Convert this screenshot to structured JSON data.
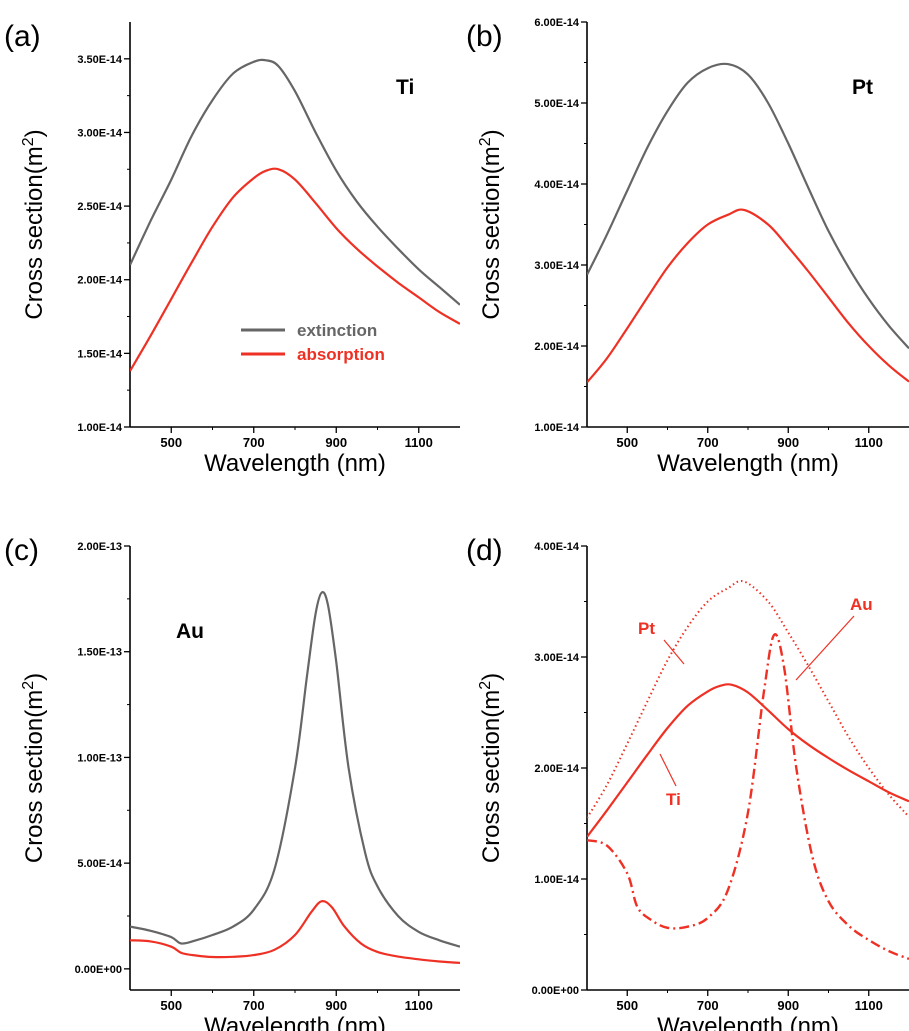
{
  "colors": {
    "extinction": "#666666",
    "absorption": "#ee3124",
    "axis": "#000000"
  },
  "chart_data": [
    {
      "panel": "(a)",
      "type": "line",
      "metal_label": "Ti",
      "xlabel": "Wavelength (nm)",
      "ylabel_main": "Cross section(m",
      "ylabel_sup": "2",
      "ylabel_tail": ")",
      "xlim": [
        400,
        1200
      ],
      "ylim": [
        1e-14,
        3.75e-14
      ],
      "xticks": [
        500,
        700,
        900,
        1100
      ],
      "yticks": [
        1e-14,
        1.5e-14,
        2e-14,
        2.5e-14,
        3e-14,
        3.5e-14
      ],
      "ytick_labels": [
        "1.00E-14",
        "1.50E-14",
        "2.00E-14",
        "2.50E-14",
        "3.00E-14",
        "3.50E-14"
      ],
      "legend": [
        "extinction",
        "absorption"
      ],
      "series": [
        {
          "name": "extinction",
          "style": "solid",
          "color": "#666666",
          "x": [
            400,
            450,
            500,
            550,
            600,
            650,
            700,
            730,
            760,
            800,
            850,
            900,
            950,
            1000,
            1050,
            1100,
            1150,
            1200
          ],
          "y": [
            2.1e-14,
            2.4e-14,
            2.68e-14,
            2.98e-14,
            3.22e-14,
            3.4e-14,
            3.48e-14,
            3.49e-14,
            3.45e-14,
            3.28e-14,
            3e-14,
            2.74e-14,
            2.53e-14,
            2.36e-14,
            2.21e-14,
            2.07e-14,
            1.95e-14,
            1.83e-14
          ]
        },
        {
          "name": "absorption",
          "style": "solid",
          "color": "#ee3124",
          "x": [
            400,
            450,
            500,
            550,
            600,
            650,
            700,
            730,
            760,
            800,
            850,
            900,
            950,
            1000,
            1050,
            1100,
            1150,
            1200
          ],
          "y": [
            1.38e-14,
            1.62e-14,
            1.87e-14,
            2.12e-14,
            2.36e-14,
            2.56e-14,
            2.69e-14,
            2.74e-14,
            2.75e-14,
            2.68e-14,
            2.52e-14,
            2.35e-14,
            2.21e-14,
            2.09e-14,
            1.98e-14,
            1.88e-14,
            1.78e-14,
            1.7e-14
          ]
        }
      ]
    },
    {
      "panel": "(b)",
      "type": "line",
      "metal_label": "Pt",
      "xlabel": "Wavelength (nm)",
      "ylabel_main": "Cross section(m",
      "ylabel_sup": "2",
      "ylabel_tail": ")",
      "xlim": [
        400,
        1200
      ],
      "ylim": [
        1e-14,
        6e-14
      ],
      "xticks": [
        500,
        700,
        900,
        1100
      ],
      "yticks": [
        1e-14,
        2e-14,
        3e-14,
        4e-14,
        5e-14,
        6e-14
      ],
      "ytick_labels": [
        "1.00E-14",
        "2.00E-14",
        "3.00E-14",
        "4.00E-14",
        "5.00E-14",
        "6.00E-14"
      ],
      "series": [
        {
          "name": "extinction",
          "style": "solid",
          "color": "#666666",
          "x": [
            400,
            450,
            500,
            550,
            600,
            650,
            700,
            750,
            800,
            850,
            900,
            950,
            1000,
            1050,
            1100,
            1150,
            1200
          ],
          "y": [
            2.88e-14,
            3.38e-14,
            3.92e-14,
            4.45e-14,
            4.9e-14,
            5.25e-14,
            5.43e-14,
            5.48e-14,
            5.35e-14,
            5e-14,
            4.5e-14,
            3.95e-14,
            3.42e-14,
            2.97e-14,
            2.58e-14,
            2.25e-14,
            1.97e-14
          ]
        },
        {
          "name": "absorption",
          "style": "solid",
          "color": "#ee3124",
          "x": [
            400,
            450,
            500,
            550,
            600,
            650,
            700,
            750,
            790,
            850,
            900,
            950,
            1000,
            1050,
            1100,
            1150,
            1200
          ],
          "y": [
            1.55e-14,
            1.85e-14,
            2.22e-14,
            2.6e-14,
            2.97e-14,
            3.27e-14,
            3.5e-14,
            3.62e-14,
            3.68e-14,
            3.5e-14,
            3.22e-14,
            2.92e-14,
            2.6e-14,
            2.28e-14,
            2e-14,
            1.76e-14,
            1.56e-14
          ]
        }
      ]
    },
    {
      "panel": "(c)",
      "type": "line",
      "metal_label": "Au",
      "xlabel": "Wavelength (nm)",
      "ylabel_main": "Cross section(m",
      "ylabel_sup": "2",
      "ylabel_tail": ")",
      "xlim": [
        400,
        1200
      ],
      "ylim": [
        -1e-14,
        2e-13
      ],
      "xticks": [
        500,
        700,
        900,
        1100
      ],
      "yticks": [
        0,
        5e-14,
        1e-13,
        1.5e-13,
        2e-13
      ],
      "ytick_labels": [
        "0.00E+00",
        "5.00E-14",
        "1.00E-13",
        "1.50E-13",
        "2.00E-13"
      ],
      "series": [
        {
          "name": "extinction",
          "style": "solid",
          "color": "#666666",
          "x": [
            400,
            450,
            500,
            525,
            560,
            600,
            650,
            700,
            750,
            800,
            830,
            850,
            865,
            880,
            900,
            930,
            970,
            1000,
            1050,
            1100,
            1150,
            1200
          ],
          "y": [
            2e-14,
            1.8e-14,
            1.5e-14,
            1.2e-14,
            1.35e-14,
            1.6e-14,
            2e-14,
            2.8e-14,
            4.7e-14,
            9.5e-14,
            1.4e-13,
            1.68e-13,
            1.78e-13,
            1.72e-13,
            1.45e-13,
            9.5e-14,
            5.5e-14,
            3.9e-14,
            2.5e-14,
            1.75e-14,
            1.35e-14,
            1.05e-14
          ]
        },
        {
          "name": "absorption",
          "style": "solid",
          "color": "#ee3124",
          "x": [
            400,
            450,
            500,
            525,
            560,
            600,
            650,
            700,
            750,
            800,
            840,
            865,
            890,
            920,
            960,
            1000,
            1050,
            1100,
            1150,
            1200
          ],
          "y": [
            1.35e-14,
            1.3e-14,
            1.05e-14,
            7.5e-15,
            6.3e-15,
            5.6e-15,
            5.7e-15,
            6.5e-15,
            9e-15,
            1.6e-14,
            2.7e-14,
            3.2e-14,
            2.9e-14,
            2e-14,
            1.2e-14,
            8e-15,
            5.8e-15,
            4.5e-15,
            3.5e-15,
            2.8e-15
          ]
        }
      ]
    },
    {
      "panel": "(d)",
      "type": "line",
      "xlabel": "Wavelength (nm)",
      "ylabel_main": "Cross section(m",
      "ylabel_sup": "2",
      "ylabel_tail": ")",
      "xlim": [
        400,
        1200
      ],
      "ylim": [
        0,
        4e-14
      ],
      "xticks": [
        500,
        700,
        900,
        1100
      ],
      "yticks": [
        0,
        1e-14,
        2e-14,
        3e-14,
        4e-14
      ],
      "ytick_labels": [
        "0.00E+00",
        "1.00E-14",
        "2.00E-14",
        "3.00E-14",
        "4.00E-14"
      ],
      "annotations": [
        "Pt",
        "Au",
        "Ti"
      ],
      "series": [
        {
          "name": "Ti",
          "style": "solid",
          "color": "#ee3124",
          "x": [
            400,
            450,
            500,
            550,
            600,
            650,
            700,
            730,
            760,
            800,
            850,
            900,
            950,
            1000,
            1050,
            1100,
            1150,
            1200
          ],
          "y": [
            1.38e-14,
            1.62e-14,
            1.87e-14,
            2.12e-14,
            2.36e-14,
            2.56e-14,
            2.69e-14,
            2.74e-14,
            2.75e-14,
            2.68e-14,
            2.52e-14,
            2.35e-14,
            2.21e-14,
            2.09e-14,
            1.98e-14,
            1.88e-14,
            1.78e-14,
            1.7e-14
          ]
        },
        {
          "name": "Pt",
          "style": "dotted",
          "color": "#ee3124",
          "x": [
            400,
            450,
            500,
            550,
            600,
            650,
            700,
            750,
            790,
            850,
            900,
            950,
            1000,
            1050,
            1100,
            1150,
            1200
          ],
          "y": [
            1.55e-14,
            1.85e-14,
            2.22e-14,
            2.6e-14,
            2.97e-14,
            3.27e-14,
            3.5e-14,
            3.62e-14,
            3.68e-14,
            3.5e-14,
            3.22e-14,
            2.92e-14,
            2.6e-14,
            2.28e-14,
            2e-14,
            1.76e-14,
            1.56e-14
          ]
        },
        {
          "name": "Au",
          "style": "dashdot",
          "color": "#ee3124",
          "x": [
            400,
            450,
            500,
            525,
            560,
            600,
            650,
            700,
            750,
            800,
            840,
            865,
            890,
            920,
            960,
            1000,
            1050,
            1100,
            1150,
            1200
          ],
          "y": [
            1.35e-14,
            1.3e-14,
            1.05e-14,
            7.5e-15,
            6.3e-15,
            5.6e-15,
            5.7e-15,
            6.5e-15,
            9e-15,
            1.6e-14,
            2.7e-14,
            3.2e-14,
            2.9e-14,
            2e-14,
            1.2e-14,
            8e-15,
            5.8e-15,
            4.5e-15,
            3.5e-15,
            2.8e-15
          ]
        }
      ]
    }
  ]
}
